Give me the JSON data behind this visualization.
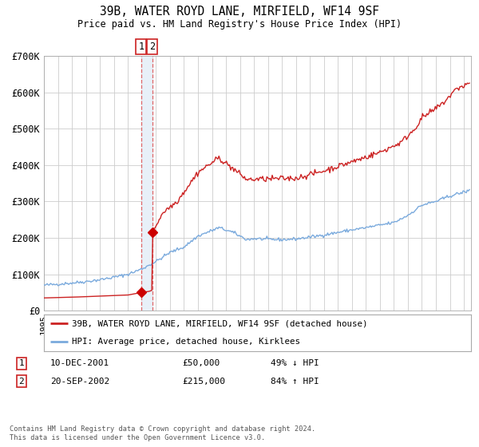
{
  "title": "39B, WATER ROYD LANE, MIRFIELD, WF14 9SF",
  "subtitle": "Price paid vs. HM Land Registry's House Price Index (HPI)",
  "legend_line1": "39B, WATER ROYD LANE, MIRFIELD, WF14 9SF (detached house)",
  "legend_line2": "HPI: Average price, detached house, Kirklees",
  "footnote": "Contains HM Land Registry data © Crown copyright and database right 2024.\nThis data is licensed under the Open Government Licence v3.0.",
  "transaction1_date": "10-DEC-2001",
  "transaction1_price": "£50,000",
  "transaction1_hpi": "49% ↓ HPI",
  "transaction2_date": "20-SEP-2002",
  "transaction2_price": "£215,000",
  "transaction2_hpi": "84% ↑ HPI",
  "hpi_color": "#7aaadd",
  "price_color": "#cc2222",
  "marker_color": "#cc0000",
  "vline_color": "#dd4444",
  "vband_color": "#e8f0f8",
  "background_color": "#ffffff",
  "grid_color": "#cccccc",
  "ylim": [
    0,
    700000
  ],
  "yticks": [
    0,
    100000,
    200000,
    300000,
    400000,
    500000,
    600000,
    700000
  ],
  "ytick_labels": [
    "£0",
    "£100K",
    "£200K",
    "£300K",
    "£400K",
    "£500K",
    "£600K",
    "£700K"
  ],
  "xmin": 1995.0,
  "xmax": 2025.5,
  "t1_x": 2001.94,
  "t2_x": 2002.72,
  "t1_y": 50000,
  "t2_y": 215000
}
